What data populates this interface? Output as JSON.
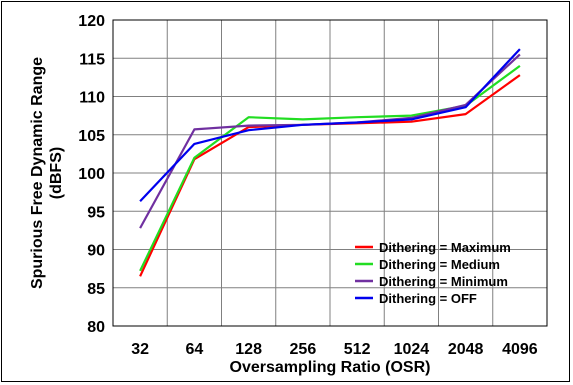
{
  "chart_data": {
    "type": "line",
    "xlabel": "Oversampling Ratio (OSR)",
    "ylabel": [
      "Spurious Free Dynamic Range",
      "(dBFS)"
    ],
    "categories": [
      "32",
      "64",
      "128",
      "256",
      "512",
      "1024",
      "2048",
      "4096"
    ],
    "ylim": [
      80,
      120
    ],
    "yticks": [
      80,
      85,
      90,
      95,
      100,
      105,
      110,
      115,
      120
    ],
    "grid": true,
    "legend_position": "bottom-right",
    "series": [
      {
        "name": "Dithering = Maximum",
        "color": "#ff0000",
        "values": [
          86.5,
          101.8,
          106.0,
          106.3,
          106.5,
          106.7,
          107.7,
          112.8
        ]
      },
      {
        "name": "Dithering = Medium",
        "color": "#22dd22",
        "values": [
          87.2,
          102.0,
          107.3,
          107.0,
          107.3,
          107.5,
          108.8,
          114.0
        ]
      },
      {
        "name": "Dithering = Minimum",
        "color": "#7030a0",
        "values": [
          92.8,
          105.7,
          106.2,
          106.3,
          106.6,
          107.2,
          108.9,
          115.5
        ]
      },
      {
        "name": "Dithering = OFF",
        "color": "#0000ee",
        "values": [
          96.3,
          103.8,
          105.6,
          106.3,
          106.6,
          107.0,
          108.6,
          116.2
        ]
      }
    ]
  }
}
